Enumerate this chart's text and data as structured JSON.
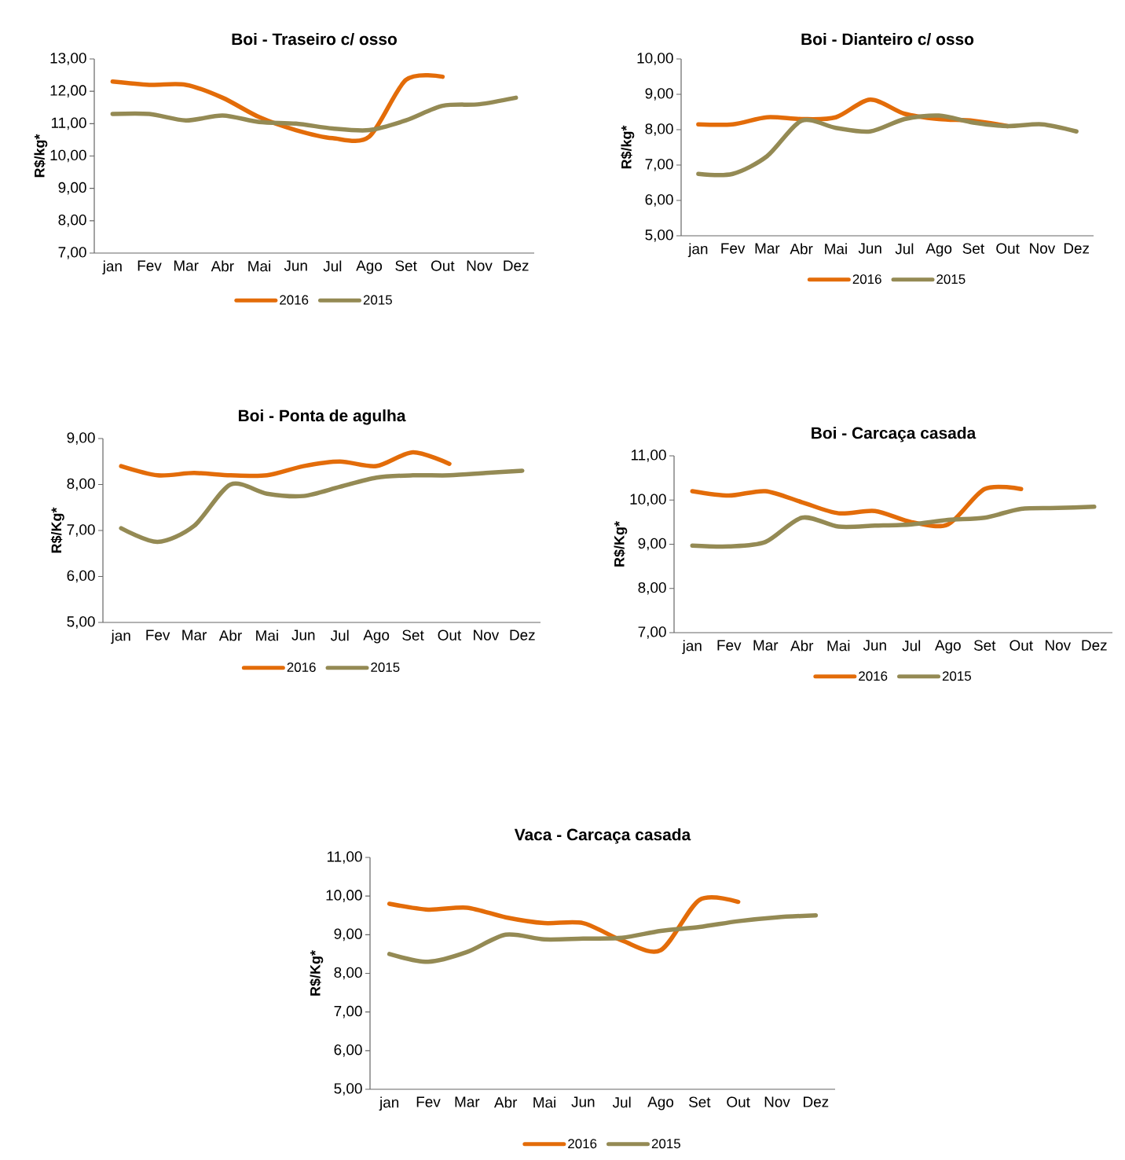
{
  "chart_data": [
    {
      "type": "line",
      "title": "Boi - Traseiro c/ osso",
      "ylabel": "R$/kg*",
      "categories": [
        "jan",
        "Fev",
        "Mar",
        "Abr",
        "Mai",
        "Jun",
        "Jul",
        "Ago",
        "Set",
        "Out",
        "Nov",
        "Dez"
      ],
      "legend": "bottom",
      "ylim": [
        7,
        13
      ],
      "yticks": [
        {
          "value": 7,
          "label": "7,00"
        },
        {
          "value": 8,
          "label": "8,00"
        },
        {
          "value": 9,
          "label": "9,00"
        },
        {
          "value": 10,
          "label": "10,00"
        },
        {
          "value": 11,
          "label": "11,00"
        },
        {
          "value": 12,
          "label": "12,00"
        },
        {
          "value": 13,
          "label": "13,00"
        }
      ],
      "series": [
        {
          "name": "2016",
          "color": "#e36c09",
          "values": [
            12.3,
            12.2,
            12.2,
            11.8,
            11.2,
            10.8,
            10.55,
            10.6,
            12.35,
            12.45,
            null,
            null
          ]
        },
        {
          "name": "2015",
          "color": "#948a54",
          "values": [
            11.3,
            11.3,
            11.1,
            11.25,
            11.05,
            11.0,
            10.85,
            10.8,
            11.1,
            11.55,
            11.6,
            11.8
          ]
        }
      ]
    },
    {
      "type": "line",
      "title": "Boi - Dianteiro c/ osso",
      "ylabel": "R$/kg*",
      "categories": [
        "jan",
        "Fev",
        "Mar",
        "Abr",
        "Mai",
        "Jun",
        "Jul",
        "Ago",
        "Set",
        "Out",
        "Nov",
        "Dez"
      ],
      "legend": "bottom",
      "ylim": [
        5,
        10
      ],
      "yticks": [
        {
          "value": 5,
          "label": "5,00"
        },
        {
          "value": 6,
          "label": "6,00"
        },
        {
          "value": 7,
          "label": "7,00"
        },
        {
          "value": 8,
          "label": "8,00"
        },
        {
          "value": 9,
          "label": "9,00"
        },
        {
          "value": 10,
          "label": "10,00"
        }
      ],
      "series": [
        {
          "name": "2016",
          "color": "#e36c09",
          "values": [
            8.15,
            8.15,
            8.35,
            8.3,
            8.35,
            8.85,
            8.45,
            8.3,
            8.25,
            8.1,
            null,
            null
          ]
        },
        {
          "name": "2015",
          "color": "#948a54",
          "values": [
            6.75,
            6.75,
            7.25,
            8.25,
            8.05,
            7.95,
            8.3,
            8.4,
            8.2,
            8.1,
            8.15,
            7.95
          ]
        }
      ]
    },
    {
      "type": "line",
      "title": "Boi - Ponta de agulha",
      "ylabel": "R$/Kg*",
      "categories": [
        "jan",
        "Fev",
        "Mar",
        "Abr",
        "Mai",
        "Jun",
        "Jul",
        "Ago",
        "Set",
        "Out",
        "Nov",
        "Dez"
      ],
      "legend": "bottom",
      "ylim": [
        5,
        9
      ],
      "yticks": [
        {
          "value": 5,
          "label": "5,00"
        },
        {
          "value": 6,
          "label": "6,00"
        },
        {
          "value": 7,
          "label": "7,00"
        },
        {
          "value": 8,
          "label": "8,00"
        },
        {
          "value": 9,
          "label": "9,00"
        }
      ],
      "series": [
        {
          "name": "2016",
          "color": "#e36c09",
          "values": [
            8.4,
            8.2,
            8.25,
            8.2,
            8.2,
            8.4,
            8.5,
            8.4,
            8.7,
            8.45,
            null,
            null
          ]
        },
        {
          "name": "2015",
          "color": "#948a54",
          "values": [
            7.05,
            6.75,
            7.1,
            8.0,
            7.8,
            7.75,
            7.95,
            8.15,
            8.2,
            8.2,
            8.25,
            8.3
          ]
        }
      ]
    },
    {
      "type": "line",
      "title": "Boi - Carcaça casada",
      "ylabel": "R$/Kg*",
      "categories": [
        "jan",
        "Fev",
        "Mar",
        "Abr",
        "Mai",
        "Jun",
        "Jul",
        "Ago",
        "Set",
        "Out",
        "Nov",
        "Dez"
      ],
      "legend": "bottom",
      "ylim": [
        7,
        11
      ],
      "yticks": [
        {
          "value": 7,
          "label": "7,00"
        },
        {
          "value": 8,
          "label": "8,00"
        },
        {
          "value": 9,
          "label": "9,00"
        },
        {
          "value": 10,
          "label": "10,00"
        },
        {
          "value": 11,
          "label": "11,00"
        }
      ],
      "series": [
        {
          "name": "2016",
          "color": "#e36c09",
          "values": [
            10.2,
            10.1,
            10.2,
            9.95,
            9.7,
            9.75,
            9.5,
            9.45,
            10.25,
            10.25,
            null,
            null
          ]
        },
        {
          "name": "2015",
          "color": "#948a54",
          "values": [
            8.97,
            8.95,
            9.05,
            9.6,
            9.4,
            9.42,
            9.45,
            9.55,
            9.6,
            9.8,
            9.82,
            9.85
          ]
        }
      ]
    },
    {
      "type": "line",
      "title": "Vaca - Carcaça casada",
      "ylabel": "R$/Kg*",
      "categories": [
        "jan",
        "Fev",
        "Mar",
        "Abr",
        "Mai",
        "Jun",
        "Jul",
        "Ago",
        "Set",
        "Out",
        "Nov",
        "Dez"
      ],
      "legend": "bottom",
      "ylim": [
        5,
        11
      ],
      "yticks": [
        {
          "value": 5,
          "label": "5,00"
        },
        {
          "value": 6,
          "label": "6,00"
        },
        {
          "value": 7,
          "label": "7,00"
        },
        {
          "value": 8,
          "label": "8,00"
        },
        {
          "value": 9,
          "label": "9,00"
        },
        {
          "value": 10,
          "label": "10,00"
        },
        {
          "value": 11,
          "label": "11,00"
        }
      ],
      "series": [
        {
          "name": "2016",
          "color": "#e36c09",
          "values": [
            9.8,
            9.65,
            9.7,
            9.45,
            9.3,
            9.3,
            8.85,
            8.6,
            9.9,
            9.85,
            null,
            null
          ]
        },
        {
          "name": "2015",
          "color": "#948a54",
          "values": [
            8.5,
            8.3,
            8.55,
            9.0,
            8.88,
            8.9,
            8.92,
            9.1,
            9.2,
            9.35,
            9.45,
            9.5
          ]
        }
      ]
    }
  ]
}
